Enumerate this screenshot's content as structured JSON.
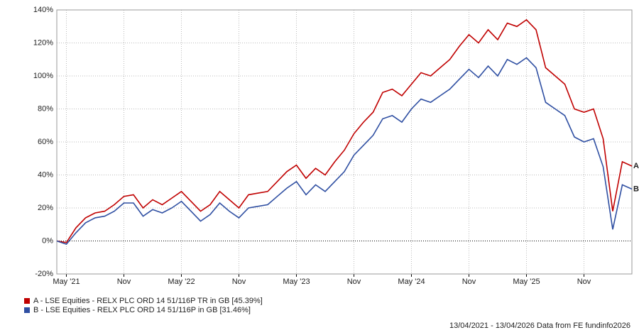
{
  "chart_data": {
    "type": "line",
    "categories": [
      null,
      "May '21",
      null,
      null,
      null,
      null,
      null,
      "Nov",
      null,
      null,
      null,
      null,
      null,
      "May '22",
      null,
      null,
      null,
      null,
      null,
      "Nov",
      null,
      null,
      null,
      null,
      null,
      "May '23",
      null,
      null,
      null,
      null,
      null,
      "Nov",
      null,
      null,
      null,
      null,
      null,
      "May '24",
      null,
      null,
      null,
      null,
      null,
      "Nov",
      null,
      null,
      null,
      null,
      null,
      "May '25",
      null,
      null,
      null,
      null,
      null,
      "Nov",
      null,
      null,
      null,
      null,
      null
    ],
    "series": [
      {
        "name": "A - LSE Equities - RELX PLC ORD 14 51/116P TR in GB [45.39%]",
        "end_label": "A",
        "color": "#c00000",
        "values": [
          0,
          -1,
          8,
          14,
          17,
          18,
          22,
          27,
          28,
          20,
          25,
          22,
          26,
          30,
          24,
          18,
          22,
          30,
          25,
          20,
          28,
          29,
          30,
          36,
          42,
          46,
          38,
          44,
          40,
          48,
          55,
          65,
          72,
          78,
          90,
          92,
          88,
          95,
          102,
          100,
          105,
          110,
          118,
          125,
          120,
          128,
          122,
          132,
          130,
          134,
          128,
          105,
          100,
          95,
          80,
          78,
          80,
          62,
          18,
          48,
          45.39
        ]
      },
      {
        "name": "B - LSE Equities - RELX PLC ORD 14 51/116P in GB [31.46%]",
        "end_label": "B",
        "color": "#2f4fa2",
        "values": [
          0,
          -2,
          5,
          11,
          14,
          15,
          18,
          23,
          23,
          15,
          19,
          17,
          20,
          24,
          18,
          12,
          16,
          23,
          18,
          14,
          20,
          21,
          22,
          27,
          32,
          36,
          28,
          34,
          30,
          36,
          42,
          52,
          58,
          64,
          74,
          76,
          72,
          80,
          86,
          84,
          88,
          92,
          98,
          104,
          99,
          106,
          100,
          110,
          107,
          111,
          105,
          84,
          80,
          76,
          63,
          60,
          62,
          45,
          7,
          34,
          31.46
        ]
      }
    ],
    "ylim": [
      -20,
      140
    ],
    "yticks": [
      {
        "value": -20,
        "label": "-20%"
      },
      {
        "value": 0,
        "label": "0%"
      },
      {
        "value": 20,
        "label": "20%"
      },
      {
        "value": 40,
        "label": "40%"
      },
      {
        "value": 60,
        "label": "60%"
      },
      {
        "value": 80,
        "label": "80%"
      },
      {
        "value": 100,
        "label": "100%"
      },
      {
        "value": 120,
        "label": "120%"
      },
      {
        "value": 140,
        "label": "140%"
      }
    ],
    "grid": true,
    "note": "13/04/2021 - 13/04/2026 Data from FE fundinfo2026"
  }
}
